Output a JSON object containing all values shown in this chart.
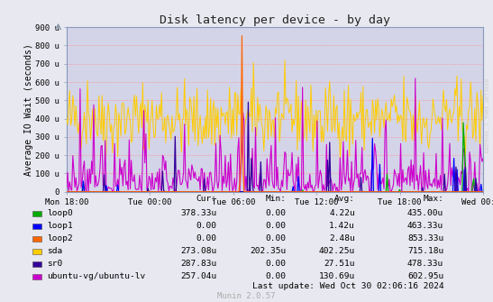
{
  "title": "Disk latency per device - by day",
  "ylabel": "Average IO Wait (seconds)",
  "ytick_labels": [
    "0",
    "100 u",
    "200 u",
    "300 u",
    "400 u",
    "500 u",
    "600 u",
    "700 u",
    "800 u",
    "900 u"
  ],
  "ytick_values": [
    0,
    100,
    200,
    300,
    400,
    500,
    600,
    700,
    800,
    900
  ],
  "ylim": [
    0,
    900
  ],
  "xtick_labels": [
    "Mon 18:00",
    "Tue 00:00",
    "Tue 06:00",
    "Tue 12:00",
    "Tue 18:00",
    "Wed 00:00"
  ],
  "bg_color": "#e8e8f0",
  "plot_bg_color": "#d4d4e8",
  "grid_color": "#ff9999",
  "title_fontsize": 10,
  "axis_fontsize": 7,
  "legend": [
    {
      "label": "loop0",
      "color": "#00aa00",
      "cur": "378.33u",
      "min": "0.00",
      "avg": "4.22u",
      "max": "435.00u"
    },
    {
      "label": "loop1",
      "color": "#0000ff",
      "cur": "0.00",
      "min": "0.00",
      "avg": "1.42u",
      "max": "463.33u"
    },
    {
      "label": "loop2",
      "color": "#ff6600",
      "cur": "0.00",
      "min": "0.00",
      "avg": "2.48u",
      "max": "853.33u"
    },
    {
      "label": "sda",
      "color": "#ffcc00",
      "cur": "273.08u",
      "min": "202.35u",
      "avg": "402.25u",
      "max": "715.18u"
    },
    {
      "label": "sr0",
      "color": "#330099",
      "cur": "287.83u",
      "min": "0.00",
      "avg": "27.51u",
      "max": "478.33u"
    },
    {
      "label": "ubuntu-vg/ubuntu-lv",
      "color": "#cc00cc",
      "cur": "257.04u",
      "min": "0.00",
      "avg": "130.69u",
      "max": "602.95u"
    }
  ],
  "footer": "Munin 2.0.57",
  "last_update": "Last update: Wed Oct 30 02:06:16 2024",
  "watermark": "RRDTOOL / TOBI OETIKER",
  "n_points": 400,
  "seed": 42
}
